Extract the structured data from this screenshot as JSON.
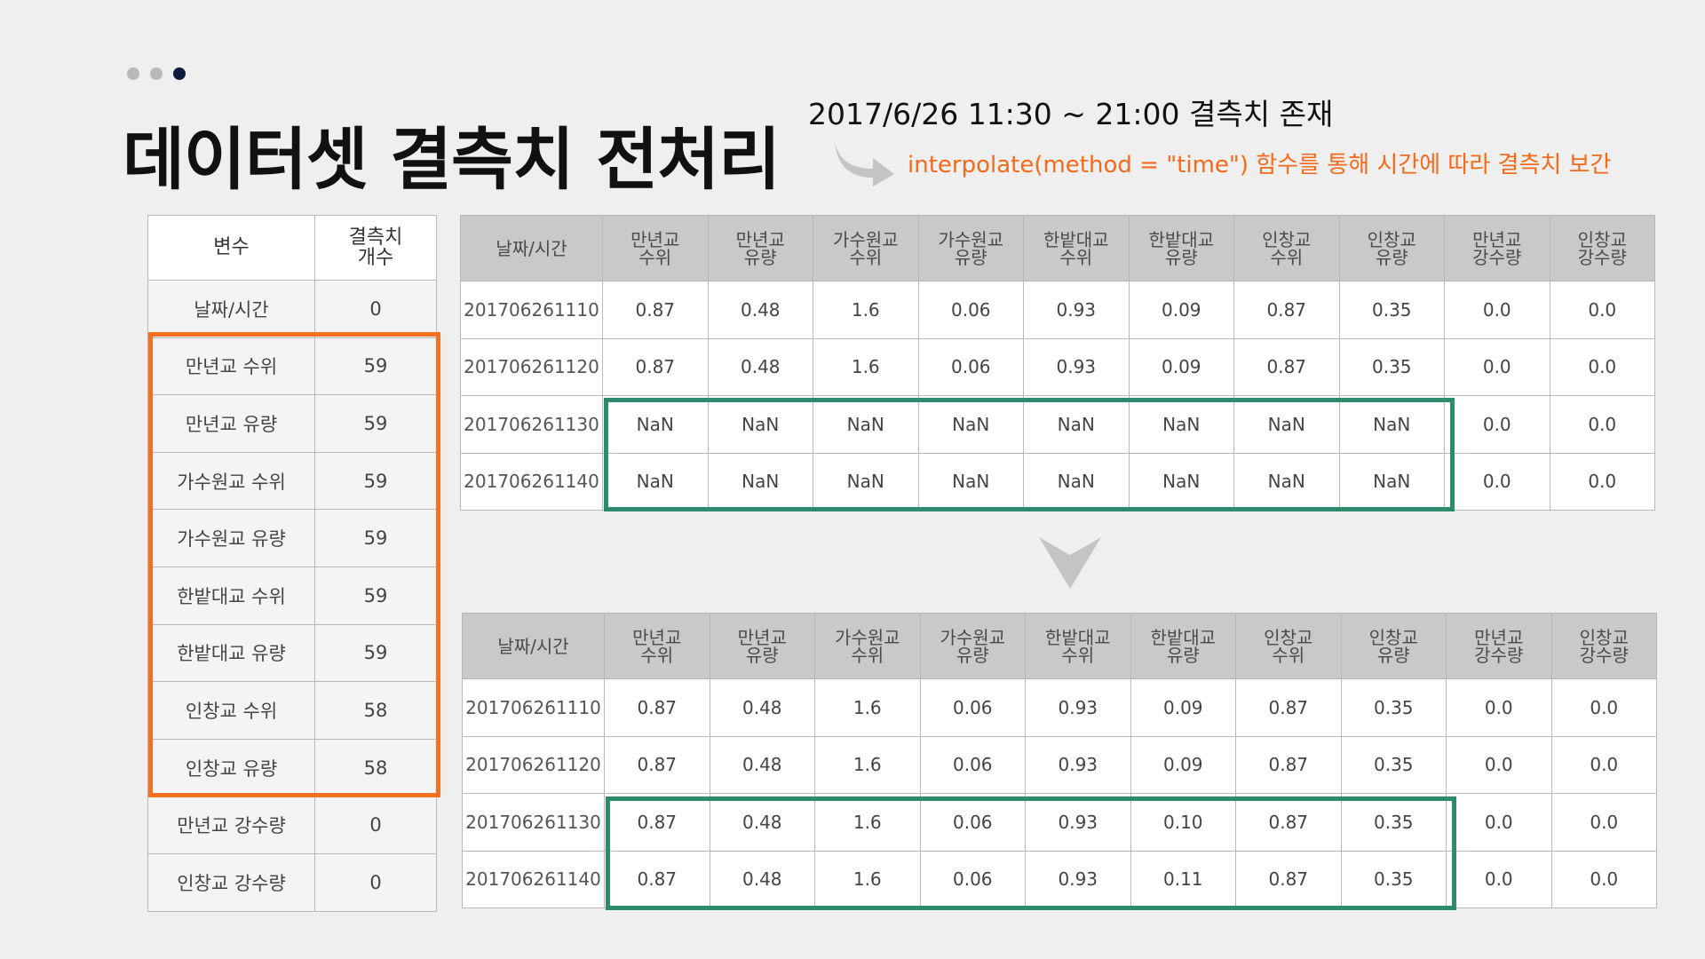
{
  "header": {
    "title": "데이터셋 결측치 전처리",
    "note_range": "2017/6/26 11:30 ~ 21:00 결측치 존재",
    "note_method": "interpolate(method = \"time\") 함수를 통해 시간에 따라 결측치 보간"
  },
  "summary": {
    "headers": [
      "변수",
      "결측치\n개수"
    ],
    "rows": [
      [
        "날짜/시간",
        "0"
      ],
      [
        "만년교 수위",
        "59"
      ],
      [
        "만년교 유량",
        "59"
      ],
      [
        "가수원교 수위",
        "59"
      ],
      [
        "가수원교 유량",
        "59"
      ],
      [
        "한밭대교 수위",
        "59"
      ],
      [
        "한밭대교 유량",
        "59"
      ],
      [
        "인창교 수위",
        "58"
      ],
      [
        "인창교 유량",
        "58"
      ],
      [
        "만년교 강수량",
        "0"
      ],
      [
        "인창교 강수량",
        "0"
      ]
    ]
  },
  "before": {
    "headers": [
      "날짜/시간",
      "만년교\n수위",
      "만년교\n유량",
      "가수원교\n수위",
      "가수원교\n유량",
      "한밭대교\n수위",
      "한밭대교\n유량",
      "인창교\n수위",
      "인창교\n유량",
      "만년교\n강수량",
      "인창교\n강수량"
    ],
    "rows": [
      [
        "201706261110",
        "0.87",
        "0.48",
        "1.6",
        "0.06",
        "0.93",
        "0.09",
        "0.87",
        "0.35",
        "0.0",
        "0.0"
      ],
      [
        "201706261120",
        "0.87",
        "0.48",
        "1.6",
        "0.06",
        "0.93",
        "0.09",
        "0.87",
        "0.35",
        "0.0",
        "0.0"
      ],
      [
        "201706261130",
        "NaN",
        "NaN",
        "NaN",
        "NaN",
        "NaN",
        "NaN",
        "NaN",
        "NaN",
        "0.0",
        "0.0"
      ],
      [
        "201706261140",
        "NaN",
        "NaN",
        "NaN",
        "NaN",
        "NaN",
        "NaN",
        "NaN",
        "NaN",
        "0.0",
        "0.0"
      ]
    ]
  },
  "after": {
    "headers": [
      "날짜/시간",
      "만년교\n수위",
      "만년교\n유량",
      "가수원교\n수위",
      "가수원교\n유량",
      "한밭대교\n수위",
      "한밭대교\n유량",
      "인창교\n수위",
      "인창교\n유량",
      "만년교\n강수량",
      "인창교\n강수량"
    ],
    "rows": [
      [
        "201706261110",
        "0.87",
        "0.48",
        "1.6",
        "0.06",
        "0.93",
        "0.09",
        "0.87",
        "0.35",
        "0.0",
        "0.0"
      ],
      [
        "201706261120",
        "0.87",
        "0.48",
        "1.6",
        "0.06",
        "0.93",
        "0.09",
        "0.87",
        "0.35",
        "0.0",
        "0.0"
      ],
      [
        "201706261130",
        "0.87",
        "0.48",
        "1.6",
        "0.06",
        "0.93",
        "0.10",
        "0.87",
        "0.35",
        "0.0",
        "0.0"
      ],
      [
        "201706261140",
        "0.87",
        "0.48",
        "1.6",
        "0.06",
        "0.93",
        "0.11",
        "0.87",
        "0.35",
        "0.0",
        "0.0"
      ]
    ]
  },
  "colors": {
    "highlight_missing": "#f37021",
    "highlight_interpolated": "#2d8a6c",
    "accent_text": "#f26a1b"
  }
}
